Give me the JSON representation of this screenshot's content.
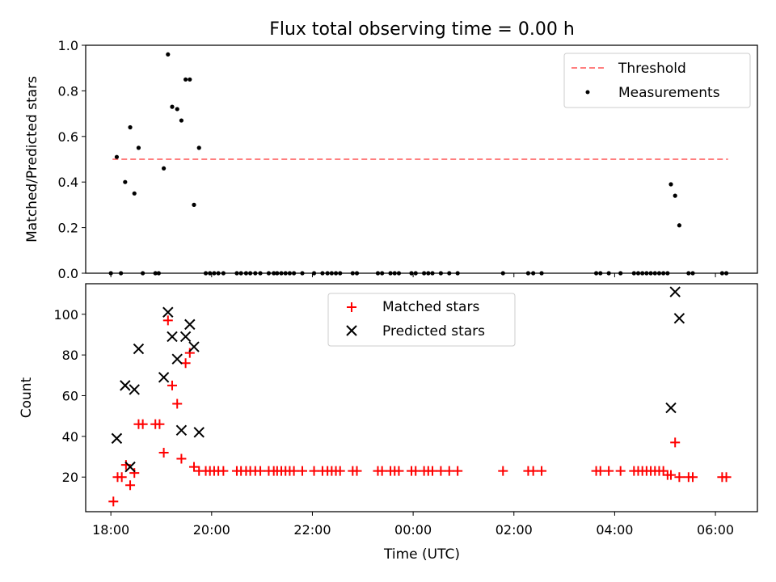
{
  "chart_data": [
    {
      "type": "scatter",
      "title": "Flux total observing time = 0.00 h",
      "ylabel": "Matched/Predicted stars",
      "ylim": [
        0,
        1.0
      ],
      "yticks": [
        "0.0",
        "0.2",
        "0.4",
        "0.6",
        "0.8",
        "1.0"
      ],
      "xlim": [
        "17:30",
        "06:50"
      ],
      "legend": "top-right",
      "grid": false,
      "series": [
        {
          "name": "Threshold",
          "style": "dashed-line",
          "color": "#ff7f7f",
          "points": [
            [
              "18:02",
              0.5
            ],
            [
              "06:15",
              0.5
            ]
          ]
        },
        {
          "name": "Measurements",
          "style": "dot",
          "color": "#000000",
          "points": [
            [
              "18:00",
              0
            ],
            [
              "18:07",
              0.51
            ],
            [
              "18:12",
              0
            ],
            [
              "18:17",
              0.4
            ],
            [
              "18:23",
              0.64
            ],
            [
              "18:28",
              0.35
            ],
            [
              "18:33",
              0.55
            ],
            [
              "18:38",
              0
            ],
            [
              "18:53",
              0
            ],
            [
              "18:57",
              0
            ],
            [
              "19:03",
              0.46
            ],
            [
              "19:08",
              0.96
            ],
            [
              "19:13",
              0.73
            ],
            [
              "19:19",
              0.72
            ],
            [
              "19:24",
              0.67
            ],
            [
              "19:29",
              0.85
            ],
            [
              "19:34",
              0.85
            ],
            [
              "19:39",
              0.3
            ],
            [
              "19:45",
              0.55
            ],
            [
              "19:53",
              0
            ],
            [
              "19:58",
              0
            ],
            [
              "20:03",
              0
            ],
            [
              "20:08",
              0
            ],
            [
              "20:14",
              0
            ],
            [
              "20:30",
              0
            ],
            [
              "20:35",
              0
            ],
            [
              "20:41",
              0
            ],
            [
              "20:46",
              0
            ],
            [
              "20:52",
              0
            ],
            [
              "20:58",
              0
            ],
            [
              "21:08",
              0
            ],
            [
              "21:14",
              0
            ],
            [
              "21:18",
              0
            ],
            [
              "21:23",
              0
            ],
            [
              "21:28",
              0
            ],
            [
              "21:33",
              0
            ],
            [
              "21:38",
              0
            ],
            [
              "21:48",
              0
            ],
            [
              "22:02",
              0
            ],
            [
              "22:12",
              0
            ],
            [
              "22:18",
              0
            ],
            [
              "22:23",
              0
            ],
            [
              "22:28",
              0
            ],
            [
              "22:33",
              0
            ],
            [
              "22:48",
              0
            ],
            [
              "22:53",
              0
            ],
            [
              "23:18",
              0
            ],
            [
              "23:23",
              0
            ],
            [
              "23:33",
              0
            ],
            [
              "23:38",
              0
            ],
            [
              "23:43",
              0
            ],
            [
              "23:58",
              0
            ],
            [
              "00:03",
              0
            ],
            [
              "00:13",
              0
            ],
            [
              "00:18",
              0
            ],
            [
              "00:23",
              0
            ],
            [
              "00:33",
              0
            ],
            [
              "00:43",
              0
            ],
            [
              "00:53",
              0
            ],
            [
              "01:47",
              0
            ],
            [
              "02:17",
              0
            ],
            [
              "02:23",
              0
            ],
            [
              "02:33",
              0
            ],
            [
              "03:38",
              0
            ],
            [
              "03:43",
              0
            ],
            [
              "03:53",
              0
            ],
            [
              "04:07",
              0
            ],
            [
              "04:23",
              0
            ],
            [
              "04:28",
              0
            ],
            [
              "04:33",
              0
            ],
            [
              "04:38",
              0
            ],
            [
              "04:43",
              0
            ],
            [
              "04:48",
              0
            ],
            [
              "04:53",
              0
            ],
            [
              "04:58",
              0
            ],
            [
              "05:03",
              0
            ],
            [
              "05:07",
              0.39
            ],
            [
              "05:12",
              0.34
            ],
            [
              "05:17",
              0.21
            ],
            [
              "05:28",
              0
            ],
            [
              "05:33",
              0
            ],
            [
              "06:08",
              0
            ],
            [
              "06:13",
              0
            ]
          ]
        }
      ]
    },
    {
      "type": "scatter",
      "xlabel": "Time (UTC)",
      "ylabel": "Count",
      "ylim": [
        3,
        115
      ],
      "yticks": [
        "20",
        "40",
        "60",
        "80",
        "100"
      ],
      "xlim": [
        "17:30",
        "06:50"
      ],
      "xticks": [
        "18:00",
        "20:00",
        "22:00",
        "00:00",
        "02:00",
        "04:00",
        "06:00"
      ],
      "legend": "top-center",
      "grid": false,
      "series": [
        {
          "name": "Matched stars",
          "style": "plus",
          "color": "#ff0000",
          "points": [
            [
              "18:03",
              8
            ],
            [
              "18:08",
              20
            ],
            [
              "18:13",
              20
            ],
            [
              "18:18",
              26
            ],
            [
              "18:23",
              16
            ],
            [
              "18:28",
              22
            ],
            [
              "18:33",
              46
            ],
            [
              "18:38",
              46
            ],
            [
              "18:53",
              46
            ],
            [
              "18:58",
              46
            ],
            [
              "19:03",
              32
            ],
            [
              "19:08",
              97
            ],
            [
              "19:13",
              65
            ],
            [
              "19:19",
              56
            ],
            [
              "19:24",
              29
            ],
            [
              "19:29",
              76
            ],
            [
              "19:34",
              81
            ],
            [
              "19:39",
              25
            ],
            [
              "19:45",
              23
            ],
            [
              "19:53",
              23
            ],
            [
              "19:58",
              23
            ],
            [
              "20:03",
              23
            ],
            [
              "20:08",
              23
            ],
            [
              "20:14",
              23
            ],
            [
              "20:30",
              23
            ],
            [
              "20:35",
              23
            ],
            [
              "20:41",
              23
            ],
            [
              "20:46",
              23
            ],
            [
              "20:52",
              23
            ],
            [
              "20:58",
              23
            ],
            [
              "21:08",
              23
            ],
            [
              "21:14",
              23
            ],
            [
              "21:18",
              23
            ],
            [
              "21:23",
              23
            ],
            [
              "21:28",
              23
            ],
            [
              "21:33",
              23
            ],
            [
              "21:38",
              23
            ],
            [
              "21:48",
              23
            ],
            [
              "22:02",
              23
            ],
            [
              "22:12",
              23
            ],
            [
              "22:18",
              23
            ],
            [
              "22:23",
              23
            ],
            [
              "22:28",
              23
            ],
            [
              "22:33",
              23
            ],
            [
              "22:48",
              23
            ],
            [
              "22:53",
              23
            ],
            [
              "23:18",
              23
            ],
            [
              "23:23",
              23
            ],
            [
              "23:33",
              23
            ],
            [
              "23:38",
              23
            ],
            [
              "23:43",
              23
            ],
            [
              "23:58",
              23
            ],
            [
              "00:03",
              23
            ],
            [
              "00:13",
              23
            ],
            [
              "00:18",
              23
            ],
            [
              "00:23",
              23
            ],
            [
              "00:33",
              23
            ],
            [
              "00:43",
              23
            ],
            [
              "00:53",
              23
            ],
            [
              "01:47",
              23
            ],
            [
              "02:17",
              23
            ],
            [
              "02:23",
              23
            ],
            [
              "02:33",
              23
            ],
            [
              "03:38",
              23
            ],
            [
              "03:43",
              23
            ],
            [
              "03:53",
              23
            ],
            [
              "04:07",
              23
            ],
            [
              "04:23",
              23
            ],
            [
              "04:28",
              23
            ],
            [
              "04:33",
              23
            ],
            [
              "04:38",
              23
            ],
            [
              "04:43",
              23
            ],
            [
              "04:48",
              23
            ],
            [
              "04:53",
              23
            ],
            [
              "04:58",
              23
            ],
            [
              "05:03",
              21
            ],
            [
              "05:07",
              21
            ],
            [
              "05:12",
              37
            ],
            [
              "05:17",
              20
            ],
            [
              "05:28",
              20
            ],
            [
              "05:33",
              20
            ],
            [
              "06:08",
              20
            ],
            [
              "06:13",
              20
            ]
          ]
        },
        {
          "name": "Predicted stars",
          "style": "x",
          "color": "#000000",
          "points": [
            [
              "18:07",
              39
            ],
            [
              "18:17",
              65
            ],
            [
              "18:23",
              25
            ],
            [
              "18:28",
              63
            ],
            [
              "18:33",
              83
            ],
            [
              "19:03",
              69
            ],
            [
              "19:08",
              101
            ],
            [
              "19:13",
              89
            ],
            [
              "19:19",
              78
            ],
            [
              "19:24",
              43
            ],
            [
              "19:29",
              89
            ],
            [
              "19:34",
              95
            ],
            [
              "19:39",
              84
            ],
            [
              "19:45",
              42
            ],
            [
              "05:07",
              54
            ],
            [
              "05:12",
              111
            ],
            [
              "05:17",
              98
            ]
          ]
        }
      ]
    }
  ]
}
